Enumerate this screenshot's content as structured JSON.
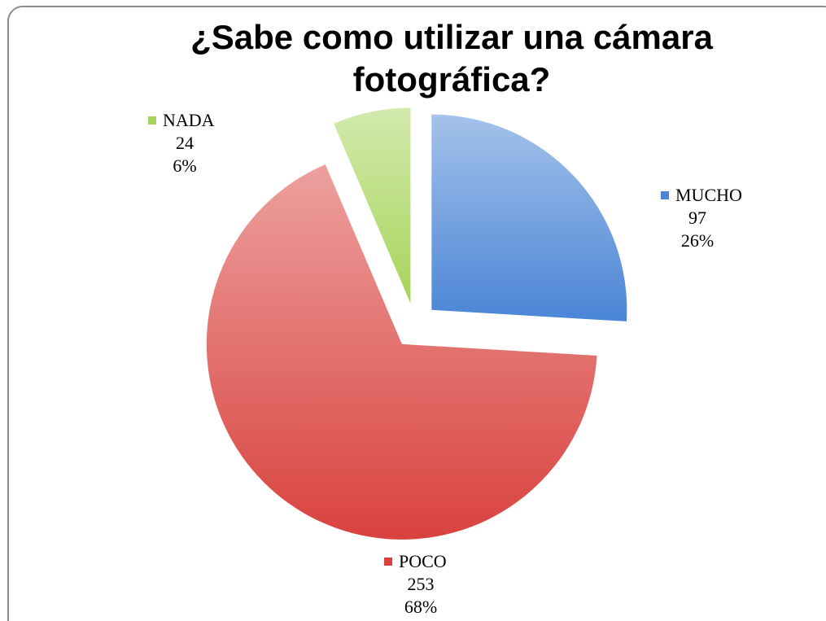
{
  "chart_data": {
    "type": "pie",
    "title": "¿Sabe como utilizar una cámara fotográfica?",
    "categories": [
      "MUCHO",
      "POCO",
      "NADA"
    ],
    "values": [
      97,
      253,
      24
    ],
    "percent_labels": [
      "26%",
      "68%",
      "6%"
    ],
    "colors": [
      "#4a85d6",
      "#d9423e",
      "#a6d45a"
    ]
  }
}
